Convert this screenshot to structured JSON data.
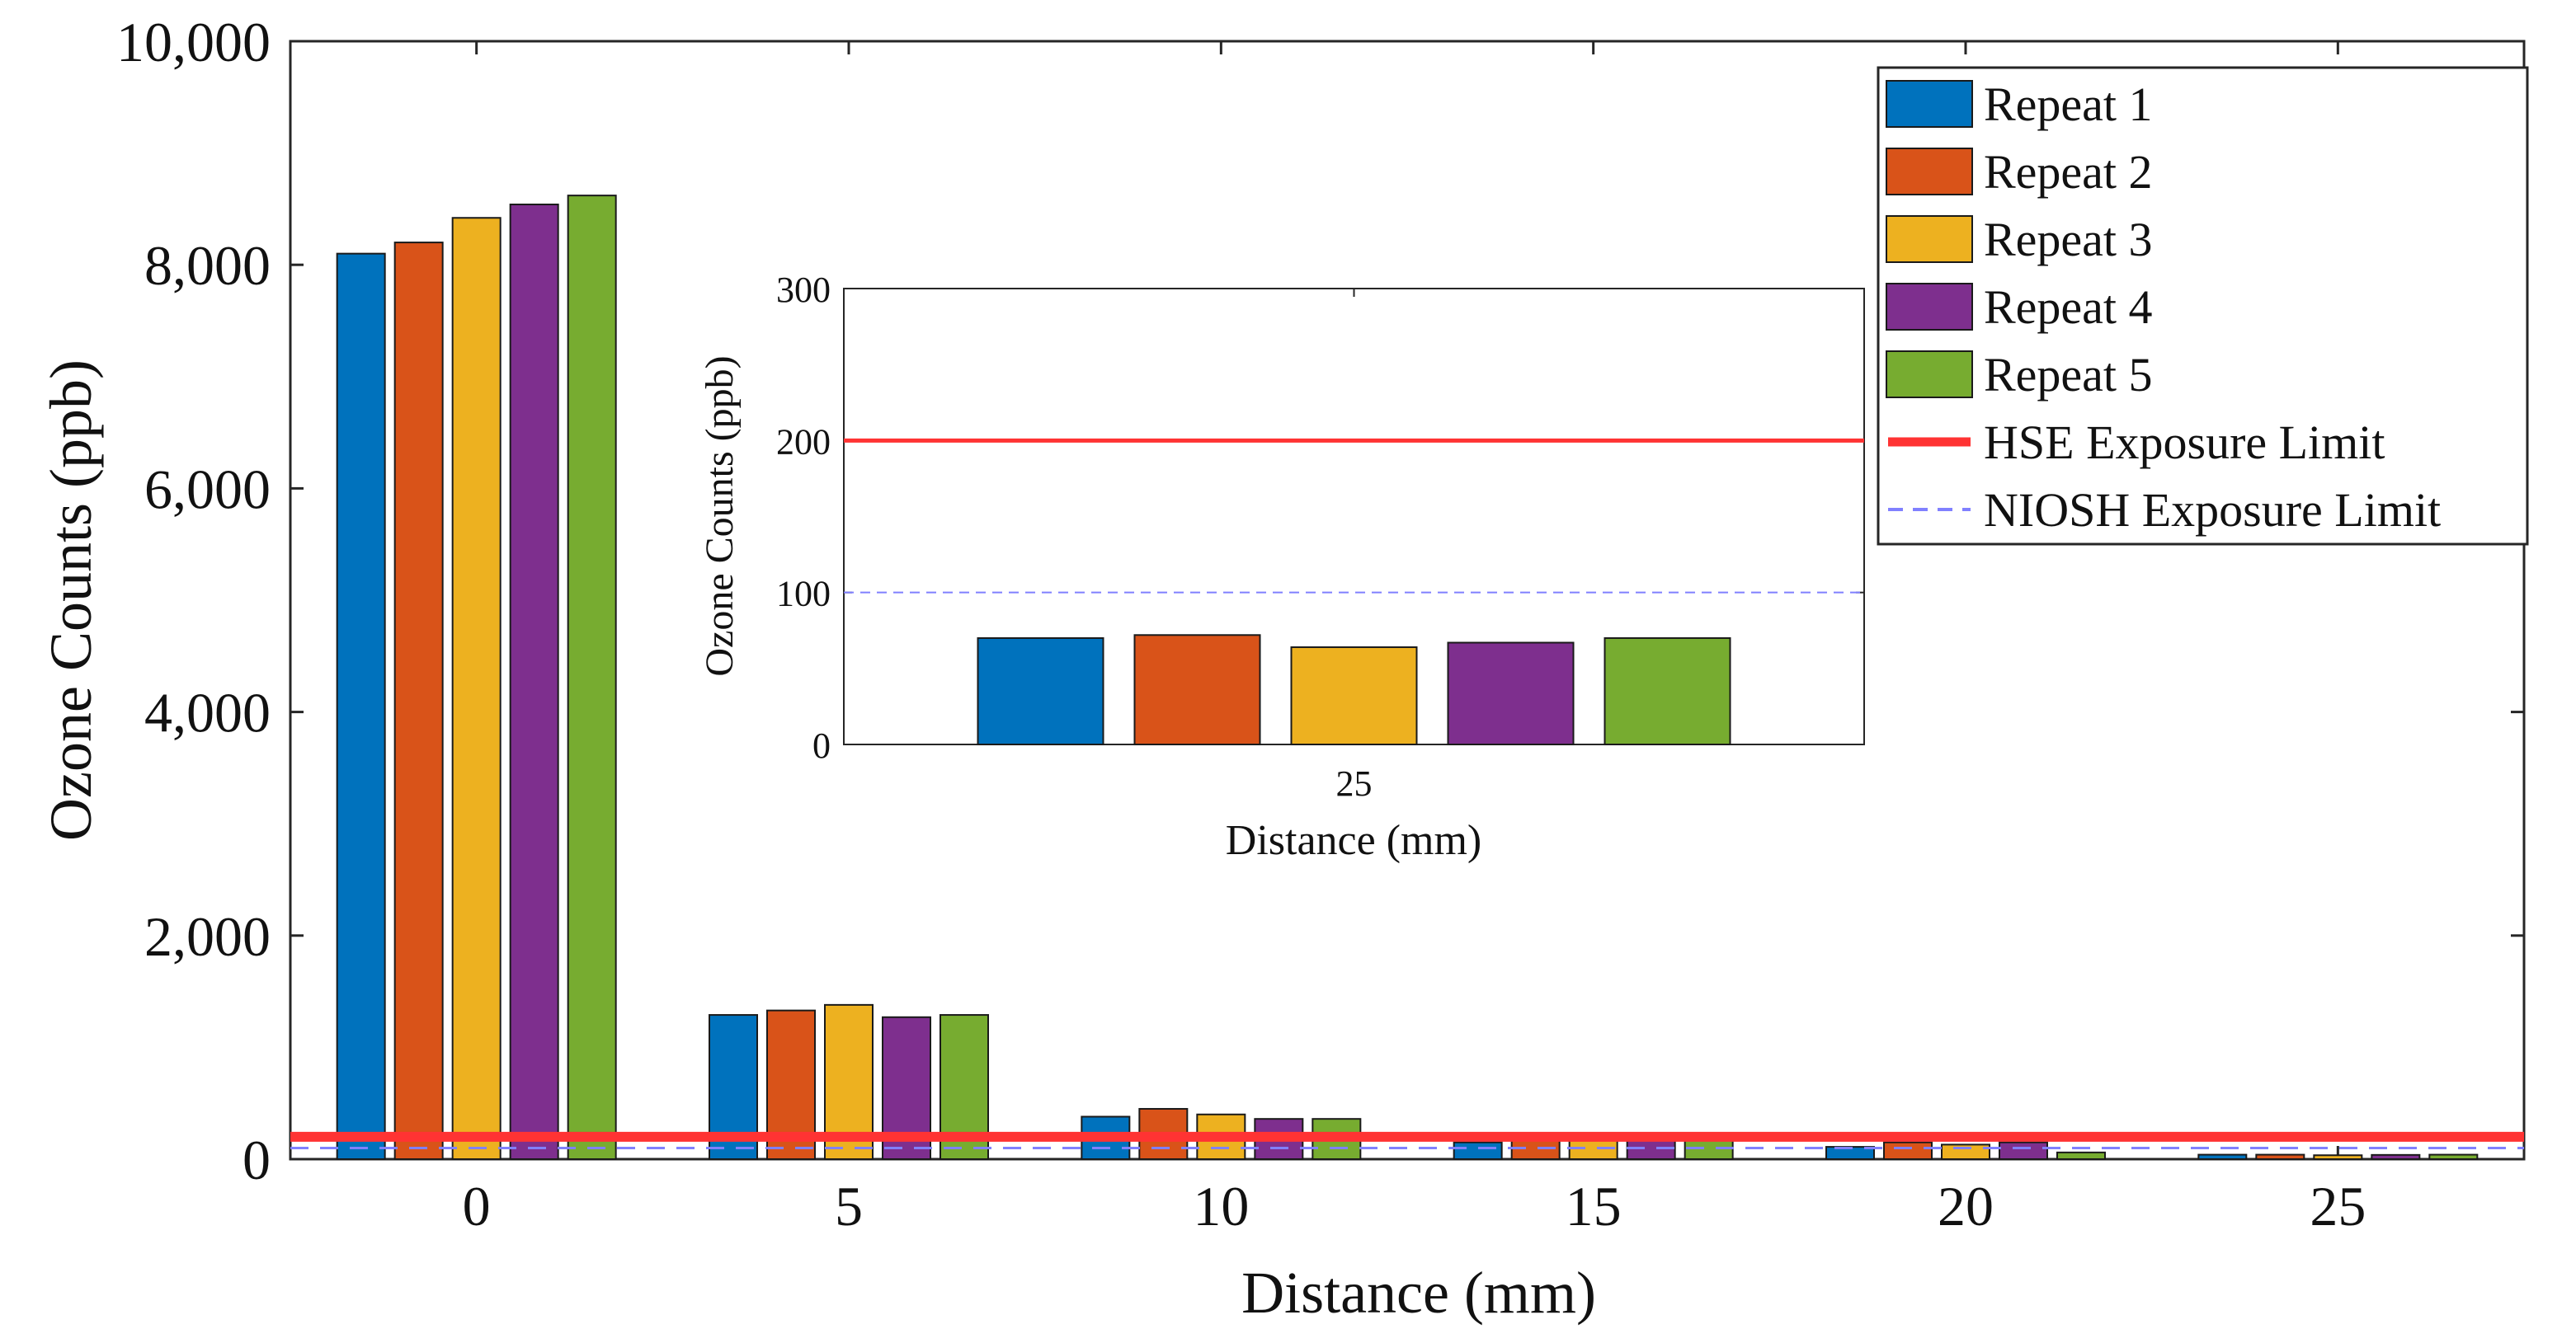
{
  "chart_data": [
    {
      "type": "bar",
      "title": "",
      "xlabel": "Distance (mm)",
      "ylabel": "Ozone Counts (ppb)",
      "categories": [
        "0",
        "5",
        "10",
        "15",
        "20",
        "25"
      ],
      "ylim": [
        0,
        10000
      ],
      "yticks": [
        0,
        2000,
        4000,
        6000,
        8000,
        10000
      ],
      "ytick_labels": [
        "0",
        "2,000",
        "4,000",
        "6,000",
        "8,000",
        "10,000"
      ],
      "series": [
        {
          "name": "Repeat 1",
          "color": "#0072BD",
          "values": [
            8100,
            1290,
            380,
            150,
            110,
            40
          ]
        },
        {
          "name": "Repeat 2",
          "color": "#D95319",
          "values": [
            8200,
            1330,
            450,
            200,
            150,
            40
          ]
        },
        {
          "name": "Repeat 3",
          "color": "#EDB120",
          "values": [
            8420,
            1380,
            400,
            170,
            130,
            35
          ]
        },
        {
          "name": "Repeat 4",
          "color": "#7E2F8E",
          "values": [
            8540,
            1270,
            360,
            190,
            150,
            38
          ]
        },
        {
          "name": "Repeat 5",
          "color": "#77AC30",
          "values": [
            8620,
            1290,
            360,
            190,
            60,
            40
          ]
        }
      ],
      "reference_lines": [
        {
          "name": "HSE Exposure Limit",
          "value": 200,
          "color": "#FF3333",
          "style": "solid"
        },
        {
          "name": "NIOSH Exposure Limit",
          "value": 100,
          "color": "#8080FF",
          "style": "dashed"
        }
      ],
      "legend": {
        "position": "top-right",
        "entries": [
          "Repeat 1",
          "Repeat 2",
          "Repeat 3",
          "Repeat 4",
          "Repeat 5",
          "HSE Exposure Limit",
          "NIOSH Exposure Limit"
        ]
      }
    },
    {
      "type": "bar",
      "title": "",
      "xlabel": "Distance (mm)",
      "ylabel": "Ozone Counts (ppb)",
      "categories": [
        "25"
      ],
      "ylim": [
        0,
        300
      ],
      "yticks": [
        0,
        100,
        200,
        300
      ],
      "ytick_labels": [
        "0",
        "100",
        "200",
        "300"
      ],
      "series": [
        {
          "name": "Repeat 1",
          "color": "#0072BD",
          "values": [
            70
          ]
        },
        {
          "name": "Repeat 2",
          "color": "#D95319",
          "values": [
            72
          ]
        },
        {
          "name": "Repeat 3",
          "color": "#EDB120",
          "values": [
            64
          ]
        },
        {
          "name": "Repeat 4",
          "color": "#7E2F8E",
          "values": [
            67
          ]
        },
        {
          "name": "Repeat 5",
          "color": "#77AC30",
          "values": [
            70
          ]
        }
      ],
      "reference_lines": [
        {
          "name": "HSE Exposure Limit",
          "value": 200,
          "color": "#FF3333",
          "style": "solid"
        },
        {
          "name": "NIOSH Exposure Limit",
          "value": 100,
          "color": "#8080FF",
          "style": "dashed"
        }
      ]
    }
  ]
}
